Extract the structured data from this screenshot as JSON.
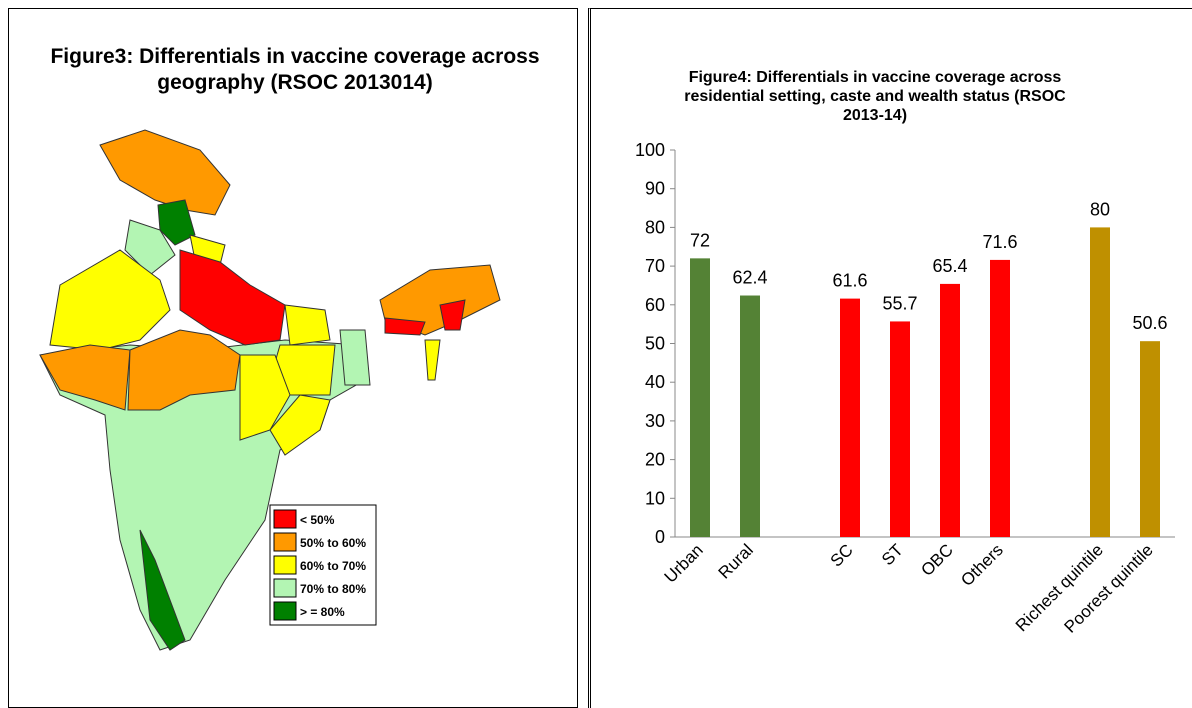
{
  "map": {
    "title": "Figure3: Differentials in vaccine coverage across geography (RSOC 2013014)",
    "legend": [
      {
        "label": "< 50%",
        "color": "#ff0000"
      },
      {
        "label": "50% to 60%",
        "color": "#ff9900"
      },
      {
        "label": "60% to 70%",
        "color": "#ffff00"
      },
      {
        "label": "70% to 80%",
        "color": "#b3f5b3"
      },
      {
        "label": "> = 80%",
        "color": "#008000"
      }
    ]
  },
  "chart_data": {
    "type": "bar",
    "title": "Figure4: Differentials in vaccine coverage across residential setting, caste and wealth status (RSOC 2013-14)",
    "categories": [
      "Urban",
      "Rural",
      null,
      "SC",
      "ST",
      "OBC",
      "Others",
      null,
      "Richest quintile",
      "Poorest quintile"
    ],
    "values": [
      72,
      62.4,
      null,
      61.6,
      55.7,
      65.4,
      71.6,
      null,
      80,
      50.6
    ],
    "colors": [
      "#548235",
      "#548235",
      null,
      "#ff0000",
      "#ff0000",
      "#ff0000",
      "#ff0000",
      null,
      "#bf9000",
      "#bf9000"
    ],
    "ylim": [
      0,
      100
    ],
    "yticks": [
      0,
      10,
      20,
      30,
      40,
      50,
      60,
      70,
      80,
      90,
      100
    ],
    "grid": false
  }
}
